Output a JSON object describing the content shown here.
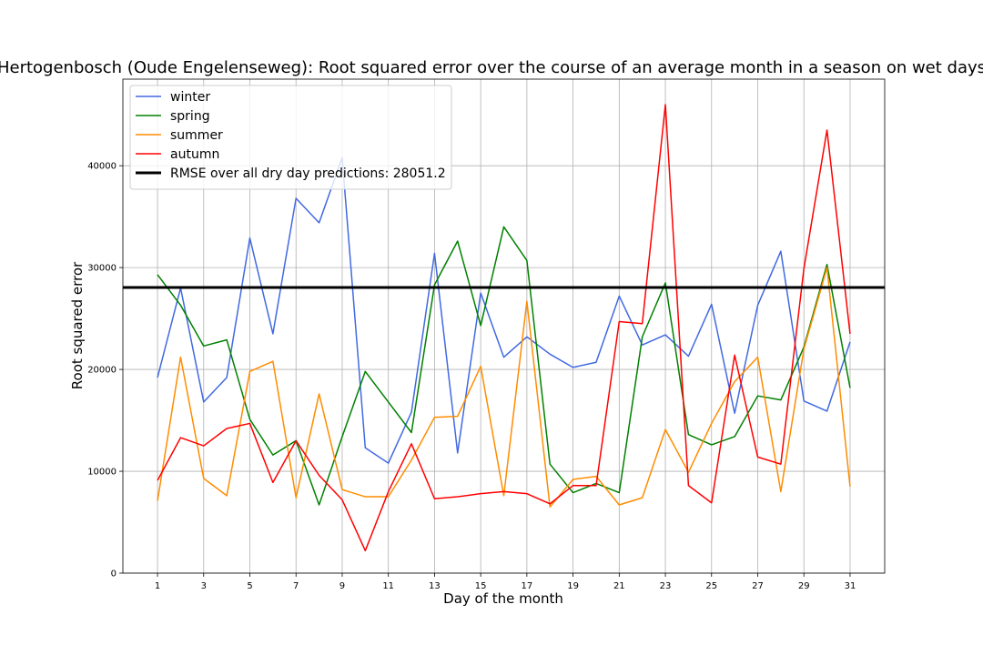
{
  "chart_data": {
    "type": "line",
    "title": "Hertogenbosch (Oude Engelenseweg): Root squared error over the course of an average month in a season on wet days",
    "xlabel": "Day of the month",
    "ylabel": "Root squared error",
    "xlim": [
      -0.5,
      32.5
    ],
    "ylim": [
      0,
      48500
    ],
    "grid": true,
    "legend_position": "top-left",
    "x_ticks": [
      1,
      3,
      5,
      7,
      9,
      11,
      13,
      15,
      17,
      19,
      21,
      23,
      25,
      27,
      29,
      31
    ],
    "x_tick_labels": [
      "1",
      "3",
      "5",
      "7",
      "9",
      "11",
      "13",
      "15",
      "17",
      "19",
      "21",
      "23",
      "25",
      "27",
      "29",
      "31"
    ],
    "y_ticks": [
      0,
      10000,
      20000,
      30000,
      40000
    ],
    "y_tick_labels": [
      "0",
      "10000",
      "20000",
      "30000",
      "40000"
    ],
    "x": [
      1,
      2,
      3,
      4,
      5,
      6,
      7,
      8,
      9,
      10,
      11,
      12,
      13,
      14,
      15,
      16,
      17,
      18,
      19,
      20,
      21,
      22,
      23,
      24,
      25,
      26,
      27,
      28,
      29,
      30,
      31
    ],
    "series": [
      {
        "name": "winter",
        "color": "#4169e1",
        "values": [
          19200,
          28000,
          16800,
          19200,
          32900,
          23500,
          36800,
          34400,
          40800,
          12300,
          10800,
          15800,
          31400,
          11800,
          27500,
          21200,
          23200,
          21500,
          20200,
          20700,
          27200,
          22400,
          23400,
          21300,
          26400,
          15700,
          26300,
          31600,
          16900,
          15900,
          22700
        ]
      },
      {
        "name": "spring",
        "color": "#008000",
        "values": [
          29300,
          26300,
          22300,
          22900,
          15100,
          11600,
          13000,
          6700,
          13400,
          19800,
          16800,
          13800,
          28300,
          32600,
          24300,
          34000,
          30700,
          10700,
          7900,
          8800,
          7900,
          23200,
          28500,
          13600,
          12600,
          13400,
          17400,
          17000,
          22200,
          30300,
          18200
        ]
      },
      {
        "name": "summer",
        "color": "#ff8c00",
        "values": [
          7100,
          21200,
          9300,
          7600,
          19800,
          20800,
          7400,
          17600,
          8200,
          7500,
          7500,
          11100,
          15300,
          15400,
          20300,
          7600,
          26700,
          6500,
          9200,
          9500,
          6700,
          7400,
          14100,
          9900,
          14700,
          18800,
          21200,
          8000,
          22000,
          30000,
          8500
        ]
      },
      {
        "name": "autumn",
        "color": "#ff0000",
        "values": [
          9100,
          13300,
          12500,
          14200,
          14700,
          8900,
          13000,
          9600,
          7200,
          2200,
          8000,
          12700,
          7300,
          7500,
          7800,
          8000,
          7800,
          6800,
          8600,
          8600,
          24700,
          24500,
          46000,
          8600,
          6900,
          21400,
          11400,
          10700,
          29900,
          43500,
          23500
        ]
      }
    ],
    "reference_line": {
      "name": "RMSE over all dry day predictions: 28051.2",
      "value": 28051.2,
      "color": "#000000"
    }
  }
}
